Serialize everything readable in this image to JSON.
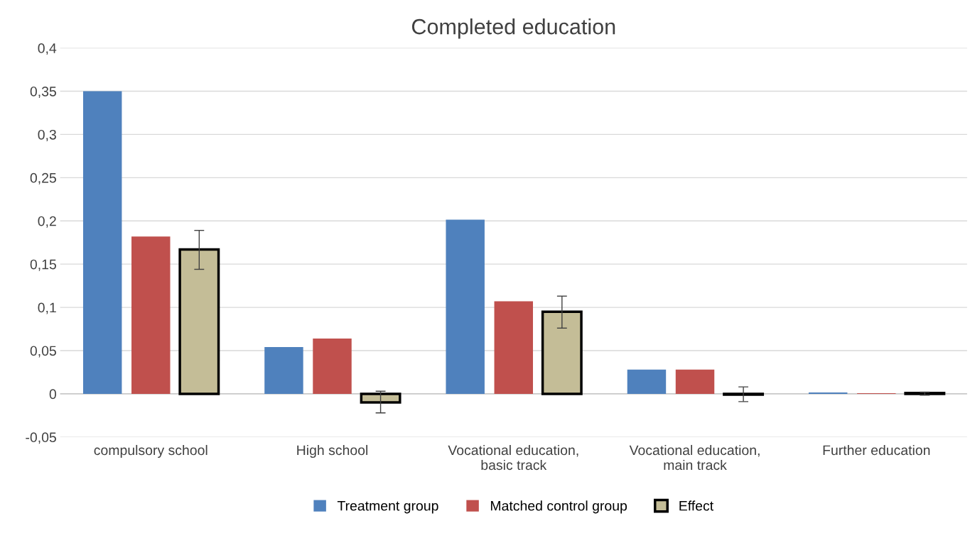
{
  "chart_data": {
    "type": "bar",
    "title": "Completed education",
    "categories": [
      "compulsory school",
      "High school",
      "Vocational education,\nbasic track",
      "Vocational education,\nmain track",
      "Further education"
    ],
    "series": [
      {
        "name": "Treatment group",
        "color": "#4f81bd",
        "values": [
          0.35,
          0.054,
          0.2015,
          0.028,
          0.0015
        ]
      },
      {
        "name": "Matched control group",
        "color": "#c0504d",
        "values": [
          0.182,
          0.064,
          0.107,
          0.028,
          0.0007
        ]
      },
      {
        "name": "Effect",
        "color": "#c4bd97",
        "values": [
          0.167,
          -0.01,
          0.095,
          -0.001,
          0.001
        ],
        "errors": [
          [
            0.144,
            0.189
          ],
          [
            -0.022,
            0.003
          ],
          [
            0.076,
            0.113
          ],
          [
            -0.009,
            0.008
          ],
          [
            -0.0015,
            0.002
          ]
        ]
      }
    ],
    "ylim": [
      -0.05,
      0.4
    ],
    "yticks": [
      {
        "value": -0.05,
        "label": "-0,05"
      },
      {
        "value": 0,
        "label": "0"
      },
      {
        "value": 0.05,
        "label": "0,05"
      },
      {
        "value": 0.1,
        "label": "0,1"
      },
      {
        "value": 0.15,
        "label": "0,15"
      },
      {
        "value": 0.2,
        "label": "0,2"
      },
      {
        "value": 0.25,
        "label": "0,25"
      },
      {
        "value": 0.3,
        "label": "0,3"
      },
      {
        "value": 0.35,
        "label": "0,35"
      },
      {
        "value": 0.4,
        "label": "0,4"
      }
    ],
    "grid": "y",
    "legend": "bottom"
  }
}
